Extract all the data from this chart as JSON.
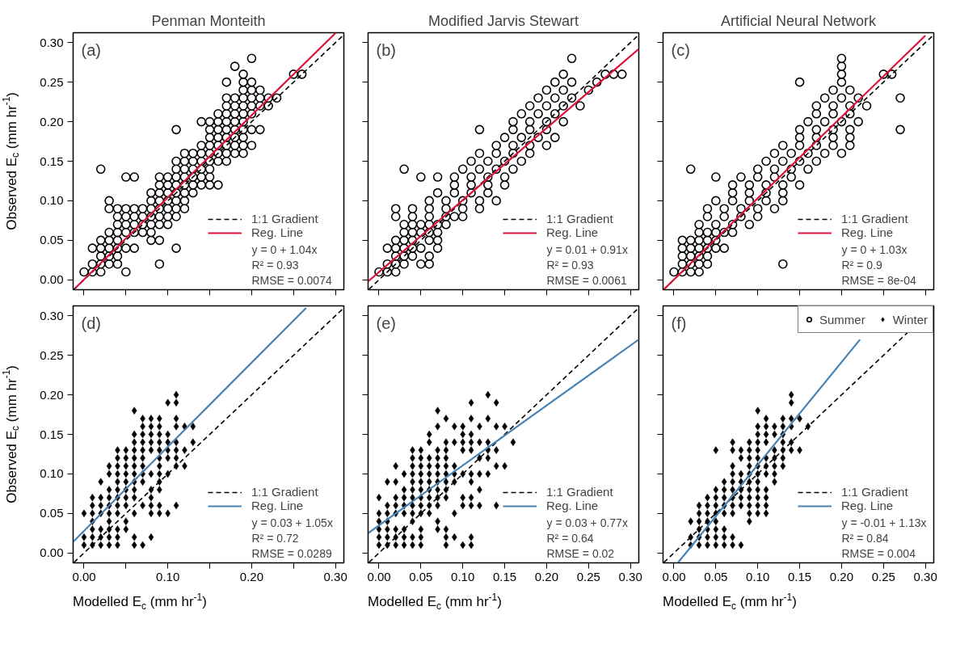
{
  "chart_data": [
    {
      "type": "scatter",
      "title": "Penman Monteith",
      "ylabel": "Observed E$_{c}$ (mm hr$^{-1}$)",
      "xlim": [
        -0.013,
        0.31
      ],
      "ylim": [
        -0.0125,
        0.3125
      ],
      "tick_labels": "y",
      "legend": "bottom right",
      "xticks": [
        0,
        0.05,
        0.1,
        0.15,
        0.2,
        0.25,
        0.3
      ],
      "yticks": [
        {
          "value": 0,
          "label": "0.00"
        },
        {
          "value": 0.05,
          "label": "0.05"
        },
        {
          "value": 0.1,
          "label": "0.10"
        },
        {
          "value": 0.15,
          "label": "0.15"
        },
        {
          "value": 0.2,
          "label": "0.20"
        },
        {
          "value": 0.25,
          "label": "0.25"
        },
        {
          "value": 0.3,
          "label": "0.30"
        }
      ],
      "annotations": [
        "(a)",
        "y = 0 + 1.04x",
        "R² = 0.93",
        "RMSE = 0.0074"
      ],
      "series": [
        {
          "marker": "circle",
          "color": "#000000",
          "x": [
            0,
            0.01,
            0.02,
            0.05,
            0.01,
            0.02,
            0.03,
            0.04,
            0.09,
            0.02,
            0.03,
            0.04,
            0.01,
            0.02,
            0.03,
            0.04,
            0.05,
            0.06,
            0.11,
            0.02,
            0.03,
            0.04,
            0.08,
            0.09,
            0.03,
            0.04,
            0.05,
            0.06,
            0.07,
            0.08,
            0.04,
            0.05,
            0.06,
            0.07,
            0.08,
            0.09,
            0.1,
            0.04,
            0.05,
            0.06,
            0.07,
            0.08,
            0.09,
            0.1,
            0.11,
            0.03,
            0.04,
            0.05,
            0.06,
            0.07,
            0.08,
            0.09,
            0.1,
            0.11,
            0.12,
            0.03,
            0.08,
            0.09,
            0.1,
            0.11,
            0.12,
            0.08,
            0.09,
            0.1,
            0.11,
            0.12,
            0.13,
            0.09,
            0.1,
            0.11,
            0.12,
            0.13,
            0.14,
            0.15,
            0.16,
            0.05,
            0.06,
            0.09,
            0.1,
            0.11,
            0.12,
            0.13,
            0.14,
            0.15,
            0.02,
            0.11,
            0.12,
            0.13,
            0.14,
            0.15,
            0.11,
            0.12,
            0.13,
            0.14,
            0.15,
            0.16,
            0.17,
            0.12,
            0.13,
            0.14,
            0.15,
            0.16,
            0.17,
            0.18,
            0.19,
            0.14,
            0.15,
            0.16,
            0.17,
            0.18,
            0.19,
            0.2,
            0.15,
            0.16,
            0.17,
            0.18,
            0.19,
            0.11,
            0.15,
            0.16,
            0.17,
            0.18,
            0.19,
            0.2,
            0.21,
            0.14,
            0.15,
            0.16,
            0.17,
            0.18,
            0.19,
            0.16,
            0.17,
            0.18,
            0.19,
            0.2,
            0.17,
            0.18,
            0.19,
            0.2,
            0.21,
            0.22,
            0.17,
            0.18,
            0.19,
            0.2,
            0.21,
            0.22,
            0.23,
            0.19,
            0.2,
            0.21,
            0.17,
            0.19,
            0.2,
            0.19,
            0.25,
            0.26,
            0.18,
            0.2
          ],
          "values": [
            0.01,
            0.01,
            0.01,
            0.01,
            0.02,
            0.02,
            0.02,
            0.02,
            0.02,
            0.03,
            0.03,
            0.03,
            0.04,
            0.04,
            0.04,
            0.04,
            0.04,
            0.04,
            0.04,
            0.05,
            0.05,
            0.05,
            0.05,
            0.05,
            0.06,
            0.06,
            0.06,
            0.06,
            0.06,
            0.06,
            0.07,
            0.07,
            0.07,
            0.07,
            0.07,
            0.07,
            0.07,
            0.08,
            0.08,
            0.08,
            0.08,
            0.08,
            0.08,
            0.08,
            0.08,
            0.09,
            0.09,
            0.09,
            0.09,
            0.09,
            0.09,
            0.09,
            0.09,
            0.09,
            0.09,
            0.1,
            0.1,
            0.1,
            0.1,
            0.1,
            0.1,
            0.11,
            0.11,
            0.11,
            0.11,
            0.11,
            0.11,
            0.12,
            0.12,
            0.12,
            0.12,
            0.12,
            0.12,
            0.12,
            0.12,
            0.13,
            0.13,
            0.13,
            0.13,
            0.13,
            0.13,
            0.13,
            0.13,
            0.13,
            0.14,
            0.14,
            0.14,
            0.14,
            0.14,
            0.14,
            0.15,
            0.15,
            0.15,
            0.15,
            0.15,
            0.15,
            0.15,
            0.16,
            0.16,
            0.16,
            0.16,
            0.16,
            0.16,
            0.16,
            0.16,
            0.17,
            0.17,
            0.17,
            0.17,
            0.17,
            0.17,
            0.17,
            0.18,
            0.18,
            0.18,
            0.18,
            0.18,
            0.19,
            0.19,
            0.19,
            0.19,
            0.19,
            0.19,
            0.19,
            0.19,
            0.2,
            0.2,
            0.2,
            0.2,
            0.2,
            0.2,
            0.21,
            0.21,
            0.21,
            0.21,
            0.21,
            0.22,
            0.22,
            0.22,
            0.22,
            0.22,
            0.22,
            0.23,
            0.23,
            0.23,
            0.23,
            0.23,
            0.23,
            0.23,
            0.24,
            0.24,
            0.24,
            0.25,
            0.25,
            0.25,
            0.26,
            0.26,
            0.26,
            0.27,
            0.28
          ]
        },
        {
          "name": "1:1 Gradient",
          "type": "line",
          "line_style": "dashed",
          "color": "#000000",
          "x": [
            -0.012,
            0.31
          ],
          "values": [
            -0.012,
            0.31
          ]
        },
        {
          "name": "Reg. Line",
          "type": "line",
          "line_style": "solid",
          "color": "#dc143c",
          "x": [
            -0.01,
            0.3
          ],
          "values": [
            -0.01,
            0.312
          ]
        }
      ]
    },
    {
      "type": "scatter",
      "title": "Modified Jarvis Stewart",
      "xlim": [
        -0.013,
        0.31
      ],
      "ylim": [
        -0.0125,
        0.3125
      ],
      "tick_labels": false,
      "legend": "bottom right",
      "xticks": [
        0,
        0.05,
        0.1,
        0.15,
        0.2,
        0.25,
        0.3
      ],
      "yticks": [
        0,
        0.05,
        0.1,
        0.15,
        0.2,
        0.25,
        0.3
      ],
      "annotations": [
        "(b)",
        "y = 0.01 + 0.91x",
        "R² = 0.93",
        "RMSE = 0.0061"
      ],
      "series": [
        {
          "marker": "circle",
          "color": "#000000",
          "x": [
            0,
            0.01,
            0.02,
            0.01,
            0.02,
            0.03,
            0.05,
            0.06,
            0.02,
            0.03,
            0.04,
            0.06,
            0.01,
            0.02,
            0.03,
            0.04,
            0.05,
            0.07,
            0.02,
            0.03,
            0.04,
            0.06,
            0.07,
            0.03,
            0.04,
            0.05,
            0.06,
            0.07,
            0.03,
            0.04,
            0.05,
            0.06,
            0.07,
            0.08,
            0.02,
            0.04,
            0.06,
            0.08,
            0.09,
            0.1,
            0.02,
            0.04,
            0.06,
            0.08,
            0.1,
            0.12,
            0.06,
            0.08,
            0.1,
            0.12,
            0.14,
            0.07,
            0.09,
            0.11,
            0.13,
            0.09,
            0.11,
            0.13,
            0.15,
            0.05,
            0.07,
            0.09,
            0.11,
            0.13,
            0.15,
            0.03,
            0.1,
            0.12,
            0.14,
            0.16,
            0.11,
            0.13,
            0.15,
            0.17,
            0.12,
            0.14,
            0.16,
            0.18,
            0.14,
            0.16,
            0.18,
            0.2,
            0.15,
            0.17,
            0.19,
            0.21,
            0.12,
            0.16,
            0.18,
            0.2,
            0.16,
            0.18,
            0.2,
            0.22,
            0.17,
            0.19,
            0.21,
            0.18,
            0.2,
            0.22,
            0.24,
            0.19,
            0.21,
            0.23,
            0.2,
            0.22,
            0.25,
            0.21,
            0.23,
            0.26,
            0.22,
            0.27,
            0.28,
            0.29,
            0.23
          ],
          "values": [
            0.01,
            0.01,
            0.01,
            0.02,
            0.02,
            0.02,
            0.02,
            0.02,
            0.03,
            0.03,
            0.03,
            0.03,
            0.04,
            0.04,
            0.04,
            0.04,
            0.04,
            0.04,
            0.05,
            0.05,
            0.05,
            0.05,
            0.05,
            0.06,
            0.06,
            0.06,
            0.06,
            0.06,
            0.07,
            0.07,
            0.07,
            0.07,
            0.07,
            0.07,
            0.08,
            0.08,
            0.08,
            0.08,
            0.08,
            0.08,
            0.09,
            0.09,
            0.09,
            0.09,
            0.09,
            0.09,
            0.1,
            0.1,
            0.1,
            0.1,
            0.1,
            0.11,
            0.11,
            0.11,
            0.11,
            0.12,
            0.12,
            0.12,
            0.12,
            0.13,
            0.13,
            0.13,
            0.13,
            0.13,
            0.13,
            0.14,
            0.14,
            0.14,
            0.14,
            0.14,
            0.15,
            0.15,
            0.15,
            0.15,
            0.16,
            0.16,
            0.16,
            0.16,
            0.17,
            0.17,
            0.17,
            0.17,
            0.18,
            0.18,
            0.18,
            0.18,
            0.19,
            0.19,
            0.19,
            0.19,
            0.2,
            0.2,
            0.2,
            0.2,
            0.21,
            0.21,
            0.21,
            0.22,
            0.22,
            0.22,
            0.22,
            0.23,
            0.23,
            0.23,
            0.24,
            0.24,
            0.24,
            0.25,
            0.25,
            0.25,
            0.26,
            0.26,
            0.26,
            0.26,
            0.28
          ]
        },
        {
          "name": "1:1 Gradient",
          "type": "line",
          "line_style": "dashed",
          "color": "#000000",
          "x": [
            -0.012,
            0.31
          ],
          "values": [
            -0.012,
            0.31
          ]
        },
        {
          "name": "Reg. Line",
          "type": "line",
          "line_style": "solid",
          "color": "#dc143c",
          "x": [
            -0.013,
            0.31
          ],
          "values": [
            -0.002,
            0.292
          ]
        }
      ]
    },
    {
      "type": "scatter",
      "title": "Artificial Neural Network",
      "xlim": [
        -0.013,
        0.31
      ],
      "ylim": [
        -0.0125,
        0.3125
      ],
      "tick_labels": false,
      "legend": "bottom right",
      "xticks": [
        0,
        0.05,
        0.1,
        0.15,
        0.2,
        0.25,
        0.3
      ],
      "yticks": [
        0,
        0.05,
        0.1,
        0.15,
        0.2,
        0.25,
        0.3
      ],
      "annotations": [
        "(c)",
        "y = 0 + 1.03x",
        "R² = 0.9",
        "RMSE = 8e-04"
      ],
      "series": [
        {
          "marker": "circle",
          "color": "#000000",
          "x": [
            0,
            0.01,
            0.02,
            0.03,
            0.01,
            0.02,
            0.03,
            0.04,
            0.13,
            0.01,
            0.02,
            0.03,
            0.04,
            0.01,
            0.02,
            0.03,
            0.04,
            0.05,
            0.06,
            0.01,
            0.02,
            0.03,
            0.04,
            0.05,
            0.03,
            0.04,
            0.05,
            0.06,
            0.07,
            0.03,
            0.05,
            0.07,
            0.09,
            0.04,
            0.06,
            0.08,
            0.1,
            0.04,
            0.06,
            0.08,
            0.1,
            0.12,
            0.05,
            0.07,
            0.09,
            0.11,
            0.13,
            0.07,
            0.09,
            0.11,
            0.13,
            0.07,
            0.09,
            0.11,
            0.13,
            0.15,
            0.05,
            0.08,
            0.1,
            0.12,
            0.14,
            0.02,
            0.1,
            0.12,
            0.14,
            0.16,
            0.11,
            0.13,
            0.15,
            0.17,
            0.12,
            0.14,
            0.16,
            0.18,
            0.2,
            0.13,
            0.15,
            0.17,
            0.19,
            0.21,
            0.15,
            0.17,
            0.19,
            0.21,
            0.15,
            0.17,
            0.19,
            0.21,
            0.27,
            0.16,
            0.18,
            0.2,
            0.22,
            0.17,
            0.19,
            0.21,
            0.17,
            0.19,
            0.21,
            0.23,
            0.18,
            0.2,
            0.22,
            0.27,
            0.19,
            0.21,
            0.15,
            0.2,
            0.2,
            0.25,
            0.26,
            0.2,
            0.2
          ],
          "values": [
            0.01,
            0.01,
            0.01,
            0.01,
            0.02,
            0.02,
            0.02,
            0.02,
            0.02,
            0.03,
            0.03,
            0.03,
            0.03,
            0.04,
            0.04,
            0.04,
            0.04,
            0.04,
            0.04,
            0.05,
            0.05,
            0.05,
            0.05,
            0.05,
            0.06,
            0.06,
            0.06,
            0.06,
            0.06,
            0.07,
            0.07,
            0.07,
            0.07,
            0.08,
            0.08,
            0.08,
            0.08,
            0.09,
            0.09,
            0.09,
            0.09,
            0.09,
            0.1,
            0.1,
            0.1,
            0.1,
            0.1,
            0.11,
            0.11,
            0.11,
            0.11,
            0.12,
            0.12,
            0.12,
            0.12,
            0.12,
            0.13,
            0.13,
            0.13,
            0.13,
            0.13,
            0.14,
            0.14,
            0.14,
            0.14,
            0.14,
            0.15,
            0.15,
            0.15,
            0.15,
            0.16,
            0.16,
            0.16,
            0.16,
            0.16,
            0.17,
            0.17,
            0.17,
            0.17,
            0.17,
            0.18,
            0.18,
            0.18,
            0.18,
            0.19,
            0.19,
            0.19,
            0.19,
            0.19,
            0.2,
            0.2,
            0.2,
            0.2,
            0.21,
            0.21,
            0.21,
            0.22,
            0.22,
            0.22,
            0.22,
            0.23,
            0.23,
            0.23,
            0.23,
            0.24,
            0.24,
            0.25,
            0.25,
            0.26,
            0.26,
            0.26,
            0.27,
            0.28
          ]
        },
        {
          "name": "1:1 Gradient",
          "type": "line",
          "line_style": "dashed",
          "color": "#000000",
          "x": [
            -0.012,
            0.31
          ],
          "values": [
            -0.012,
            0.31
          ]
        },
        {
          "name": "Reg. Line",
          "type": "line",
          "line_style": "solid",
          "color": "#dc143c",
          "x": [
            -0.012,
            0.3
          ],
          "values": [
            -0.012,
            0.309
          ]
        }
      ]
    },
    {
      "type": "scatter",
      "xlabel": "Modelled E$_{c}$ (mm hr$^{-1}$)",
      "ylabel": "Observed E$_{c}$ (mm hr$^{-1}$)",
      "xlim": [
        -0.013,
        0.31
      ],
      "ylim": [
        -0.0125,
        0.3125
      ],
      "legend": "bottom right",
      "xticks": [
        {
          "value": 0,
          "label": "0.00"
        },
        {
          "value": 0.05,
          "label": null
        },
        {
          "value": 0.1,
          "label": "0.10"
        },
        {
          "value": 0.15,
          "label": null
        },
        {
          "value": 0.2,
          "label": "0.20"
        },
        {
          "value": 0.25,
          "label": null
        },
        {
          "value": 0.3,
          "label": "0.30"
        }
      ],
      "yticks": [
        {
          "value": 0,
          "label": "0.00"
        },
        {
          "value": 0.05,
          "label": "0.05"
        },
        {
          "value": 0.1,
          "label": "0.10"
        },
        {
          "value": 0.15,
          "label": "0.15"
        },
        {
          "value": 0.2,
          "label": "0.20"
        },
        {
          "value": 0.25,
          "label": "0.25"
        },
        {
          "value": 0.3,
          "label": "0.30"
        }
      ],
      "annotations": [
        "(d)",
        "y = 0.03 + 1.05x",
        "R² = 0.72",
        "RMSE = 0.0289"
      ],
      "series": [
        {
          "marker": "diamond",
          "color": "#000000",
          "x": [
            0,
            0.01,
            0.02,
            0.03,
            0.04,
            0.06,
            0.07,
            0,
            0.01,
            0.02,
            0.03,
            0.04,
            0.06,
            0.08,
            0.01,
            0.02,
            0.03,
            0.04,
            0.05,
            0.01,
            0.03,
            0.05,
            0,
            0.01,
            0.02,
            0.03,
            0.04,
            0.06,
            0.08,
            0.09,
            0.1,
            0.01,
            0.02,
            0.03,
            0.04,
            0.05,
            0.07,
            0.08,
            0.09,
            0.11,
            0.01,
            0.02,
            0.03,
            0.04,
            0.05,
            0.06,
            0.08,
            0.03,
            0.04,
            0.05,
            0.06,
            0.08,
            0.09,
            0.02,
            0.04,
            0.05,
            0.06,
            0.07,
            0.09,
            0.03,
            0.04,
            0.05,
            0.06,
            0.07,
            0.08,
            0.09,
            0.1,
            0.03,
            0.04,
            0.05,
            0.06,
            0.07,
            0.09,
            0.11,
            0.12,
            0.04,
            0.05,
            0.06,
            0.07,
            0.09,
            0.1,
            0.11,
            0.04,
            0.05,
            0.06,
            0.07,
            0.08,
            0.09,
            0.1,
            0.11,
            0.12,
            0.06,
            0.07,
            0.08,
            0.09,
            0.1,
            0.11,
            0.13,
            0.06,
            0.07,
            0.08,
            0.09,
            0.1,
            0.07,
            0.08,
            0.09,
            0.11,
            0.12,
            0.13,
            0.07,
            0.08,
            0.09,
            0.11,
            0.06,
            0.1,
            0.11,
            0.11
          ],
          "values": [
            0.01,
            0.01,
            0.01,
            0.01,
            0.01,
            0.01,
            0.01,
            0.02,
            0.02,
            0.02,
            0.02,
            0.02,
            0.02,
            0.02,
            0.03,
            0.03,
            0.03,
            0.03,
            0.03,
            0.04,
            0.04,
            0.04,
            0.05,
            0.05,
            0.05,
            0.05,
            0.05,
            0.05,
            0.05,
            0.05,
            0.05,
            0.06,
            0.06,
            0.06,
            0.06,
            0.06,
            0.06,
            0.06,
            0.06,
            0.06,
            0.07,
            0.07,
            0.07,
            0.07,
            0.07,
            0.07,
            0.07,
            0.08,
            0.08,
            0.08,
            0.08,
            0.08,
            0.08,
            0.09,
            0.09,
            0.09,
            0.09,
            0.09,
            0.09,
            0.1,
            0.1,
            0.1,
            0.1,
            0.1,
            0.1,
            0.1,
            0.1,
            0.11,
            0.11,
            0.11,
            0.11,
            0.11,
            0.11,
            0.11,
            0.11,
            0.12,
            0.12,
            0.12,
            0.12,
            0.12,
            0.12,
            0.12,
            0.13,
            0.13,
            0.13,
            0.13,
            0.13,
            0.13,
            0.13,
            0.13,
            0.13,
            0.14,
            0.14,
            0.14,
            0.14,
            0.14,
            0.14,
            0.14,
            0.15,
            0.15,
            0.15,
            0.15,
            0.15,
            0.16,
            0.16,
            0.16,
            0.16,
            0.16,
            0.16,
            0.17,
            0.17,
            0.17,
            0.17,
            0.18,
            0.19,
            0.19,
            0.2
          ]
        },
        {
          "name": "1:1 Gradient",
          "type": "line",
          "line_style": "dashed",
          "color": "#000000",
          "x": [
            -0.012,
            0.31
          ],
          "values": [
            -0.012,
            0.31
          ]
        },
        {
          "name": "Reg. Line",
          "type": "line",
          "line_style": "solid",
          "color": "#4682b4",
          "x": [
            -0.013,
            0.265
          ],
          "values": [
            0.014,
            0.31
          ]
        }
      ]
    },
    {
      "type": "scatter",
      "xlabel": "Modelled E$_{c}$ (mm hr$^{-1}$)",
      "xlim": [
        -0.013,
        0.31
      ],
      "ylim": [
        -0.0125,
        0.3125
      ],
      "tick_labels": "x",
      "legend": "bottom right",
      "xticks": [
        {
          "value": 0,
          "label": "0.00"
        },
        {
          "value": 0.05,
          "label": "0.05"
        },
        {
          "value": 0.1,
          "label": "0.10"
        },
        {
          "value": 0.15,
          "label": "0.15"
        },
        {
          "value": 0.2,
          "label": "0.20"
        },
        {
          "value": 0.25,
          "label": "0.25"
        },
        {
          "value": 0.3,
          "label": "0.30"
        }
      ],
      "yticks": [
        0,
        0.05,
        0.1,
        0.15,
        0.2,
        0.25,
        0.3
      ],
      "annotations": [
        "(e)",
        "y = 0.03 + 0.77x",
        "R² = 0.64",
        "RMSE = 0.02"
      ],
      "series": [
        {
          "marker": "diamond",
          "color": "#000000",
          "x": [
            0,
            0.01,
            0.02,
            0.03,
            0.04,
            0.05,
            0.08,
            0.1,
            0.11,
            0,
            0.01,
            0.02,
            0.03,
            0.04,
            0.05,
            0.08,
            0.09,
            0.11,
            0,
            0.01,
            0.02,
            0.03,
            0.05,
            0.07,
            0.08,
            0,
            0.01,
            0.04,
            0.07,
            0,
            0.01,
            0.02,
            0.03,
            0.04,
            0.05,
            0.06,
            0.09,
            0.01,
            0.02,
            0.03,
            0.04,
            0.05,
            0.06,
            0.07,
            0.1,
            0.11,
            0.12,
            0.14,
            0,
            0.02,
            0.03,
            0.04,
            0.05,
            0.06,
            0.07,
            0.08,
            0.1,
            0.11,
            0.03,
            0.04,
            0.05,
            0.06,
            0.07,
            0.08,
            0.12,
            0.01,
            0.02,
            0.04,
            0.05,
            0.06,
            0.07,
            0.08,
            0.09,
            0.11,
            0.03,
            0.04,
            0.05,
            0.06,
            0.07,
            0.08,
            0.09,
            0.1,
            0.11,
            0.12,
            0.13,
            0.02,
            0.04,
            0.05,
            0.06,
            0.07,
            0.08,
            0.09,
            0.14,
            0.15,
            0.04,
            0.05,
            0.06,
            0.07,
            0.08,
            0.12,
            0.13,
            0.04,
            0.05,
            0.07,
            0.08,
            0.1,
            0.11,
            0.13,
            0.14,
            0.06,
            0.08,
            0.09,
            0.1,
            0.11,
            0.12,
            0.13,
            0.16,
            0.06,
            0.1,
            0.11,
            0.07,
            0.09,
            0.1,
            0.12,
            0.14,
            0.15,
            0.08,
            0.11,
            0.13,
            0.07,
            0.11,
            0.14,
            0.13
          ],
          "values": [
            0.01,
            0.01,
            0.01,
            0.01,
            0.01,
            0.01,
            0.01,
            0.01,
            0.01,
            0.02,
            0.02,
            0.02,
            0.02,
            0.02,
            0.02,
            0.02,
            0.02,
            0.02,
            0.03,
            0.03,
            0.03,
            0.03,
            0.03,
            0.03,
            0.03,
            0.04,
            0.04,
            0.04,
            0.04,
            0.05,
            0.05,
            0.05,
            0.05,
            0.05,
            0.05,
            0.05,
            0.05,
            0.06,
            0.06,
            0.06,
            0.06,
            0.06,
            0.06,
            0.06,
            0.06,
            0.06,
            0.06,
            0.06,
            0.07,
            0.07,
            0.07,
            0.07,
            0.07,
            0.07,
            0.07,
            0.07,
            0.07,
            0.07,
            0.08,
            0.08,
            0.08,
            0.08,
            0.08,
            0.08,
            0.08,
            0.09,
            0.09,
            0.09,
            0.09,
            0.09,
            0.09,
            0.09,
            0.09,
            0.09,
            0.1,
            0.1,
            0.1,
            0.1,
            0.1,
            0.1,
            0.1,
            0.1,
            0.1,
            0.1,
            0.1,
            0.11,
            0.11,
            0.11,
            0.11,
            0.11,
            0.11,
            0.11,
            0.11,
            0.11,
            0.12,
            0.12,
            0.12,
            0.12,
            0.12,
            0.12,
            0.12,
            0.13,
            0.13,
            0.13,
            0.13,
            0.13,
            0.13,
            0.13,
            0.13,
            0.14,
            0.14,
            0.14,
            0.14,
            0.14,
            0.14,
            0.14,
            0.14,
            0.15,
            0.15,
            0.15,
            0.16,
            0.16,
            0.16,
            0.16,
            0.16,
            0.16,
            0.17,
            0.17,
            0.17,
            0.18,
            0.19,
            0.19,
            0.2
          ]
        },
        {
          "name": "1:1 Gradient",
          "type": "line",
          "line_style": "dashed",
          "color": "#000000",
          "x": [
            -0.012,
            0.31
          ],
          "values": [
            -0.012,
            0.31
          ]
        },
        {
          "name": "Reg. Line",
          "type": "line",
          "line_style": "solid",
          "color": "#4682b4",
          "x": [
            -0.013,
            0.31
          ],
          "values": [
            0.025,
            0.27
          ]
        }
      ]
    },
    {
      "type": "scatter",
      "xlabel": "Modelled E$_{c}$ (mm hr$^{-1}$)",
      "xlim": [
        -0.013,
        0.31
      ],
      "ylim": [
        -0.0125,
        0.3125
      ],
      "tick_labels": "x",
      "legend": "right",
      "xticks": [
        {
          "value": 0,
          "label": "0.00"
        },
        {
          "value": 0.05,
          "label": "0.05"
        },
        {
          "value": 0.1,
          "label": "0.10"
        },
        {
          "value": 0.15,
          "label": "0.15"
        },
        {
          "value": 0.2,
          "label": "0.20"
        },
        {
          "value": 0.25,
          "label": "0.25"
        },
        {
          "value": 0.3,
          "label": "0.30"
        }
      ],
      "yticks": [
        0,
        0.05,
        0.1,
        0.15,
        0.2,
        0.25,
        0.3
      ],
      "annotations": [
        "(f)",
        "y = -0.01 + 1.13x",
        "R² = 0.84",
        "RMSE = 0.004"
      ],
      "series": [
        {
          "name": "Summer",
          "marker": "circle",
          "color": "#000000"
        },
        {
          "name": "Winter",
          "marker": "diamond",
          "color": "#000000",
          "x": [
            0.02,
            0.03,
            0.04,
            0.05,
            0.06,
            0.07,
            0.08,
            0.02,
            0.03,
            0.04,
            0.05,
            0.06,
            0.07,
            0.03,
            0.04,
            0.05,
            0.06,
            0.02,
            0.03,
            0.04,
            0.05,
            0.09,
            0.03,
            0.04,
            0.05,
            0.06,
            0.07,
            0.09,
            0.1,
            0.11,
            0.03,
            0.04,
            0.05,
            0.06,
            0.07,
            0.08,
            0.09,
            0.1,
            0.11,
            0.04,
            0.05,
            0.06,
            0.07,
            0.08,
            0.09,
            0.1,
            0.11,
            0.05,
            0.06,
            0.07,
            0.08,
            0.09,
            0.1,
            0.11,
            0.06,
            0.07,
            0.08,
            0.09,
            0.1,
            0.12,
            0.07,
            0.08,
            0.09,
            0.1,
            0.11,
            0.12,
            0.07,
            0.09,
            0.1,
            0.11,
            0.12,
            0.13,
            0.08,
            0.09,
            0.1,
            0.11,
            0.12,
            0.13,
            0.05,
            0.07,
            0.08,
            0.09,
            0.1,
            0.12,
            0.13,
            0.14,
            0.15,
            0.07,
            0.09,
            0.1,
            0.11,
            0.13,
            0.14,
            0.1,
            0.11,
            0.12,
            0.13,
            0.1,
            0.11,
            0.12,
            0.13,
            0.14,
            0.16,
            0.11,
            0.13,
            0.14,
            0.15,
            0.1,
            0.14,
            0.14
          ],
          "values": [
            0.01,
            0.01,
            0.01,
            0.01,
            0.01,
            0.01,
            0.01,
            0.02,
            0.02,
            0.02,
            0.02,
            0.02,
            0.02,
            0.03,
            0.03,
            0.03,
            0.03,
            0.04,
            0.04,
            0.04,
            0.04,
            0.04,
            0.05,
            0.05,
            0.05,
            0.05,
            0.05,
            0.05,
            0.05,
            0.05,
            0.06,
            0.06,
            0.06,
            0.06,
            0.06,
            0.06,
            0.06,
            0.06,
            0.06,
            0.07,
            0.07,
            0.07,
            0.07,
            0.07,
            0.07,
            0.07,
            0.07,
            0.08,
            0.08,
            0.08,
            0.08,
            0.08,
            0.08,
            0.08,
            0.09,
            0.09,
            0.09,
            0.09,
            0.09,
            0.09,
            0.1,
            0.1,
            0.1,
            0.1,
            0.1,
            0.1,
            0.11,
            0.11,
            0.11,
            0.11,
            0.11,
            0.11,
            0.12,
            0.12,
            0.12,
            0.12,
            0.12,
            0.12,
            0.13,
            0.13,
            0.13,
            0.13,
            0.13,
            0.13,
            0.13,
            0.13,
            0.13,
            0.14,
            0.14,
            0.14,
            0.14,
            0.14,
            0.14,
            0.15,
            0.15,
            0.15,
            0.15,
            0.16,
            0.16,
            0.16,
            0.16,
            0.16,
            0.16,
            0.17,
            0.17,
            0.17,
            0.17,
            0.18,
            0.19,
            0.2
          ]
        },
        {
          "name": "1:1 Gradient",
          "type": "line",
          "line_style": "dashed",
          "color": "#000000",
          "x": [
            -0.012,
            0.31
          ],
          "values": [
            -0.012,
            0.31
          ]
        },
        {
          "name": "Reg. Line",
          "type": "line",
          "line_style": "solid",
          "color": "#4682b4",
          "x": [
            0.005,
            0.222
          ],
          "values": [
            -0.012,
            0.27
          ]
        }
      ]
    }
  ]
}
